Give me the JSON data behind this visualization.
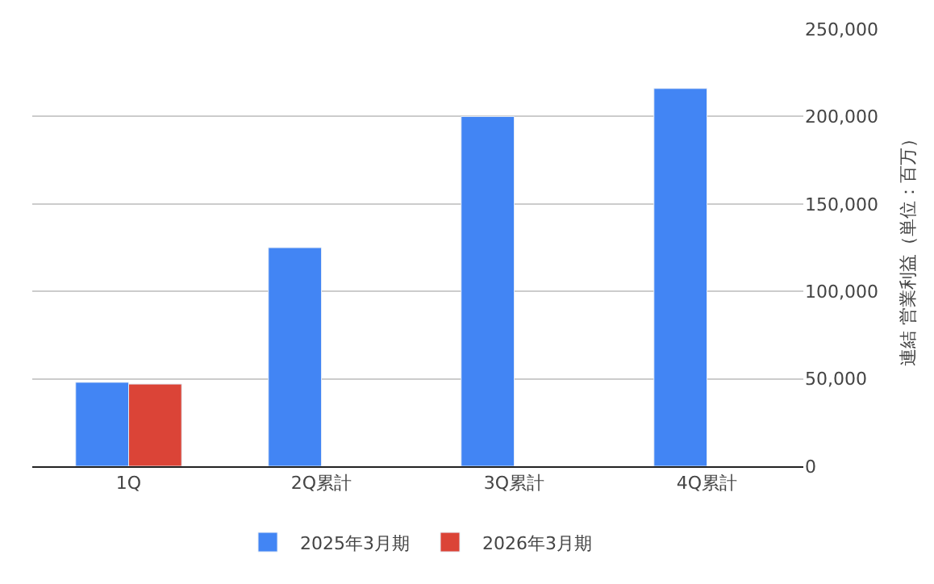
{
  "chart_data": {
    "type": "bar",
    "ylabel": "連結 営業利益（単位：百万）",
    "categories": [
      "1Q",
      "2Q累計",
      "3Q累計",
      "4Q累計"
    ],
    "series": [
      {
        "name": "2025年3月期",
        "color": "#4285f4",
        "values": [
          48000,
          125000,
          200000,
          216000
        ]
      },
      {
        "name": "2026年3月期",
        "color": "#db4437",
        "values": [
          47000,
          null,
          null,
          null
        ]
      }
    ],
    "ylim": [
      0,
      250000
    ],
    "yticks": [
      {
        "value": 0,
        "label": "0"
      },
      {
        "value": 50000,
        "label": "50,000"
      },
      {
        "value": 100000,
        "label": "100,000"
      },
      {
        "value": 150000,
        "label": "150,000"
      },
      {
        "value": 200000,
        "label": "200,000"
      },
      {
        "value": 250000,
        "label": "250,000"
      }
    ],
    "grid": "y",
    "legend": "bottom"
  }
}
